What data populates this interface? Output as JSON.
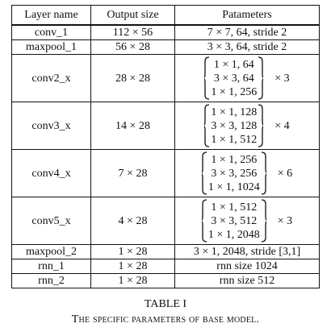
{
  "table": {
    "headers": [
      "Layer name",
      "Output size",
      "Patameters"
    ],
    "rows": [
      {
        "name": "conv_1",
        "output": "112 × 56",
        "params": "7 × 7, 64, stride 2"
      },
      {
        "name": "maxpool_1",
        "output": "56 × 28",
        "params": "3 × 3, 64, stride 2"
      },
      {
        "name": "conv2_x",
        "output": "28 × 28",
        "block": [
          "1 × 1, 64",
          "3 × 3, 64",
          "1 × 1, 256"
        ],
        "repeat": "× 3"
      },
      {
        "name": "conv3_x",
        "output": "14 × 28",
        "block": [
          "1 × 1, 128",
          "3 × 3, 128",
          "1 × 1, 512"
        ],
        "repeat": "× 4"
      },
      {
        "name": "conv4_x",
        "output": "7 × 28",
        "block": [
          "1 × 1, 256",
          "3 × 3, 256",
          "1 × 1, 1024"
        ],
        "repeat": "× 6"
      },
      {
        "name": "conv5_x",
        "output": "4 × 28",
        "block": [
          "1 × 1, 512",
          "3 × 3, 512",
          "1 × 1, 2048"
        ],
        "repeat": "× 3"
      },
      {
        "name": "maxpool_2",
        "output": "1 × 28",
        "params": "3 × 1, 2048, stride [3,1]"
      },
      {
        "name": "rnn_1",
        "output": "1 × 28",
        "params": "rnn size 1024"
      },
      {
        "name": "rnn_2",
        "output": "1 × 28",
        "params": "rnn size 512"
      }
    ]
  },
  "caption": {
    "number": "TABLE I",
    "title": "The specific parameters of base model."
  }
}
